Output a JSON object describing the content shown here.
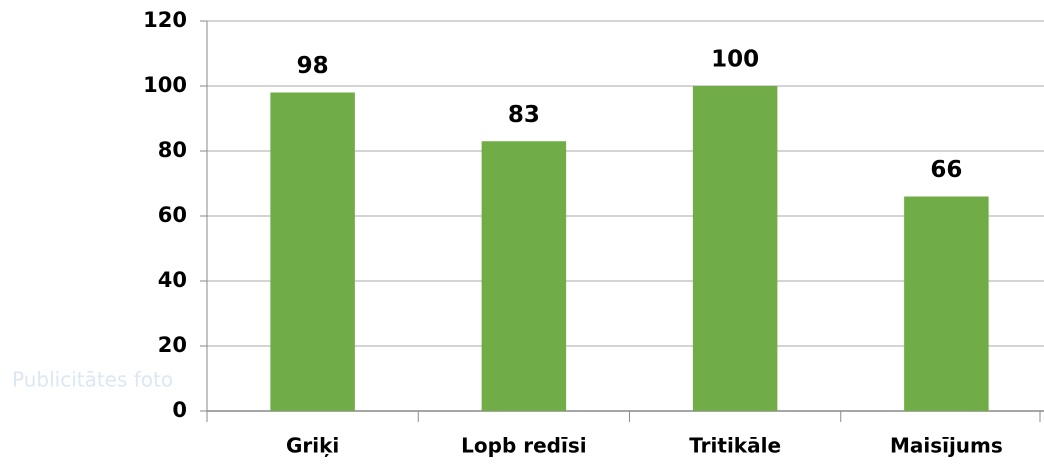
{
  "chart_data": {
    "type": "bar",
    "categories": [
      "Griķi",
      "Lopb redīsi",
      "Tritikāle",
      "Maisījums"
    ],
    "values": [
      98,
      83,
      100,
      66
    ],
    "color": "#70ad47",
    "ylim": [
      0,
      120
    ],
    "yticks": [
      0,
      20,
      40,
      60,
      80,
      100,
      120
    ],
    "grid": true,
    "watermark": "Publicitātes foto"
  }
}
